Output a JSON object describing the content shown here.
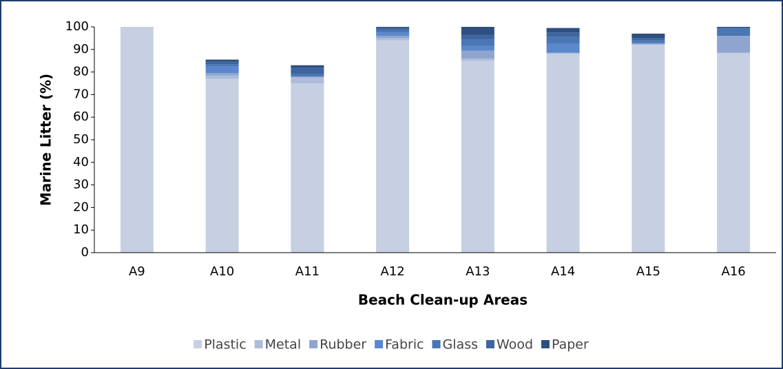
{
  "chart_data": {
    "type": "stacked_bar",
    "xlabel": "Beach Clean-up Areas",
    "ylabel": "Marine Litter (%)",
    "categories": [
      "A9",
      "A10",
      "A11",
      "A12",
      "A13",
      "A14",
      "A15",
      "A16"
    ],
    "series": [
      {
        "name": "Plastic",
        "color": "#c6d0e2",
        "values": [
          100,
          77,
          75,
          94,
          85,
          88,
          92,
          88.5
        ]
      },
      {
        "name": "Metal",
        "color": "#adbcd9",
        "values": [
          0,
          1.5,
          2.5,
          1,
          1,
          0.5,
          0.5,
          0
        ]
      },
      {
        "name": "Rubber",
        "color": "#8fa5d0",
        "values": [
          0,
          1,
          0.5,
          1,
          3.5,
          0,
          0,
          7.5
        ]
      },
      {
        "name": "Fabric",
        "color": "#5b88cc",
        "values": [
          0,
          3,
          0,
          1.5,
          2,
          4,
          0.5,
          0
        ]
      },
      {
        "name": "Glass",
        "color": "#4a76b5",
        "values": [
          0,
          1,
          1,
          1,
          3,
          3,
          1,
          3.5
        ]
      },
      {
        "name": "Wood",
        "color": "#3f659e",
        "values": [
          0,
          1,
          3,
          1,
          2,
          2,
          1,
          0
        ]
      },
      {
        "name": "Paper",
        "color": "#2f4f7f",
        "values": [
          0,
          1,
          1,
          0.5,
          3.5,
          2,
          2,
          0.5
        ]
      }
    ],
    "ylim": [
      0,
      100
    ],
    "yticks": [
      0,
      10,
      20,
      30,
      40,
      50,
      60,
      70,
      80,
      90,
      100
    ],
    "grid": false,
    "legend": "bottom"
  }
}
